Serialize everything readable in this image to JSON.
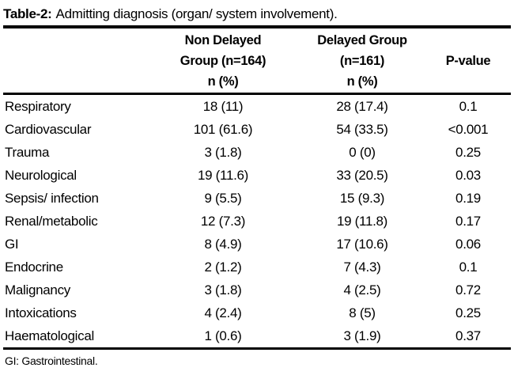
{
  "title": {
    "label": "Table-2:",
    "text": "Admitting diagnosis (organ/ system involvement)."
  },
  "table": {
    "header": {
      "diagnosis": "",
      "non_delayed": "Non Delayed\nGroup (n=164)\nn (%)",
      "delayed": "Delayed Group\n(n=161)\nn (%)",
      "p_value": "P-value"
    },
    "rows": [
      [
        "Respiratory",
        "18 (11)",
        "28 (17.4)",
        "0.1"
      ],
      [
        "Cardiovascular",
        "101 (61.6)",
        "54 (33.5)",
        "<0.001"
      ],
      [
        "Trauma",
        "3 (1.8)",
        "0 (0)",
        "0.25"
      ],
      [
        "Neurological",
        "19 (11.6)",
        "33 (20.5)",
        "0.03"
      ],
      [
        "Sepsis/ infection",
        "9 (5.5)",
        "15 (9.3)",
        "0.19"
      ],
      [
        "Renal/metabolic",
        "12 (7.3)",
        "19 (11.8)",
        "0.17"
      ],
      [
        "GI",
        "8 (4.9)",
        "17 (10.6)",
        "0.06"
      ],
      [
        "Endocrine",
        "2 (1.2)",
        "7 (4.3)",
        "0.1"
      ],
      [
        "Malignancy",
        "3 (1.8)",
        "4 (2.5)",
        "0.72"
      ],
      [
        "Intoxications",
        "4 (2.4)",
        "8 (5)",
        "0.25"
      ],
      [
        "Haematological",
        "1 (0.6)",
        "3 (1.9)",
        "0.37"
      ]
    ]
  },
  "footnote": "GI: Gastrointestinal.",
  "colors": {
    "text": "#000000",
    "background": "#ffffff",
    "rule": "#000000"
  }
}
